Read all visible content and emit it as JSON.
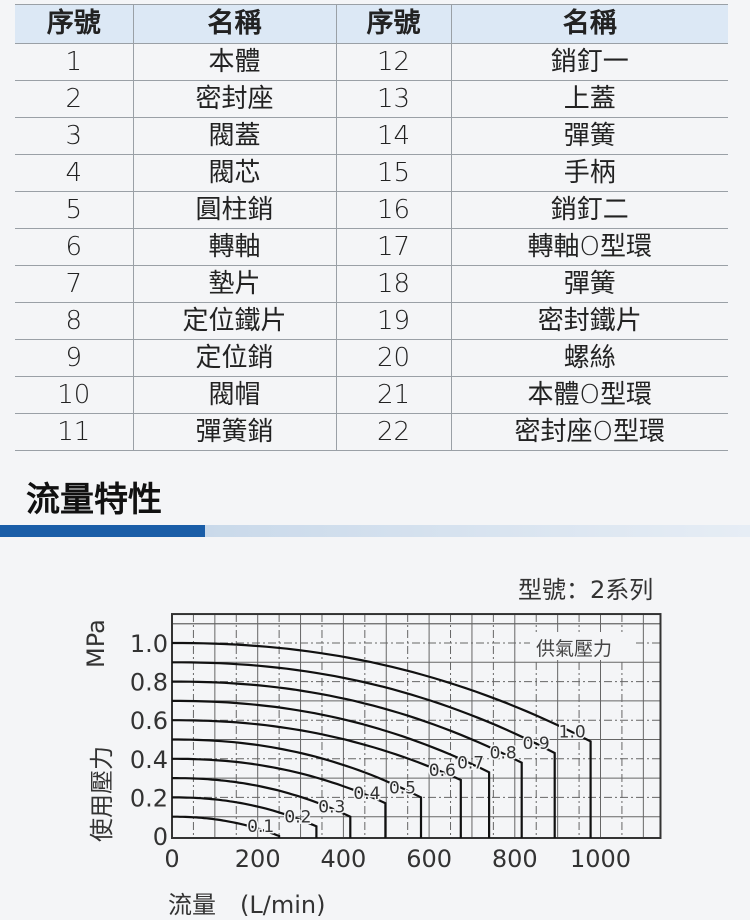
{
  "table": {
    "headers": [
      "序號",
      "名稱",
      "序號",
      "名稱"
    ],
    "rows": [
      [
        "1",
        "本體",
        "12",
        "銷釘一"
      ],
      [
        "2",
        "密封座",
        "13",
        "上蓋"
      ],
      [
        "3",
        "閥蓋",
        "14",
        "彈簧"
      ],
      [
        "4",
        "閥芯",
        "15",
        "手柄"
      ],
      [
        "5",
        "圓柱銷",
        "16",
        "銷釘二"
      ],
      [
        "6",
        "轉軸",
        "17",
        "轉軸O型環"
      ],
      [
        "7",
        "墊片",
        "18",
        "彈簧"
      ],
      [
        "8",
        "定位鐵片",
        "19",
        "密封鐵片"
      ],
      [
        "9",
        "定位銷",
        "20",
        "螺絲"
      ],
      [
        "10",
        "閥帽",
        "21",
        "本體O型環"
      ],
      [
        "11",
        "彈簧銷",
        "22",
        "密封座O型環"
      ]
    ]
  },
  "section": {
    "title": "流量特性",
    "accent": "#1a5ea8"
  },
  "chart_data": {
    "type": "line",
    "model_label": "型號：2系列",
    "ylabel": "使用壓力",
    "yunit": "MPa",
    "xlabel": "流量　(L/min)",
    "legend_title": "供氣壓力",
    "xlim": [
      0,
      1140
    ],
    "ylim": [
      0,
      1.15
    ],
    "xticks": [
      "0",
      "200",
      "400",
      "600",
      "800",
      "1000"
    ],
    "yticks": [
      "0",
      "0.2",
      "0.4",
      "0.6",
      "0.8",
      "1.0"
    ],
    "grid": true,
    "series": [
      {
        "name": "0.1",
        "supply": 0.1,
        "max_flow": 250,
        "pressure_at_max": 0.0
      },
      {
        "name": "0.2",
        "supply": 0.2,
        "max_flow": 337,
        "pressure_at_max": 0.05
      },
      {
        "name": "0.3",
        "supply": 0.3,
        "max_flow": 416,
        "pressure_at_max": 0.1
      },
      {
        "name": "0.4",
        "supply": 0.4,
        "max_flow": 498,
        "pressure_at_max": 0.17
      },
      {
        "name": "0.5",
        "supply": 0.5,
        "max_flow": 581,
        "pressure_at_max": 0.2
      },
      {
        "name": "0.6",
        "supply": 0.6,
        "max_flow": 674,
        "pressure_at_max": 0.29
      },
      {
        "name": "0.7",
        "supply": 0.7,
        "max_flow": 740,
        "pressure_at_max": 0.33
      },
      {
        "name": "0.8",
        "supply": 0.8,
        "max_flow": 816,
        "pressure_at_max": 0.38
      },
      {
        "name": "0.9",
        "supply": 0.9,
        "max_flow": 893,
        "pressure_at_max": 0.43
      },
      {
        "name": "1.0",
        "supply": 1.0,
        "max_flow": 977,
        "pressure_at_max": 0.49
      }
    ]
  }
}
